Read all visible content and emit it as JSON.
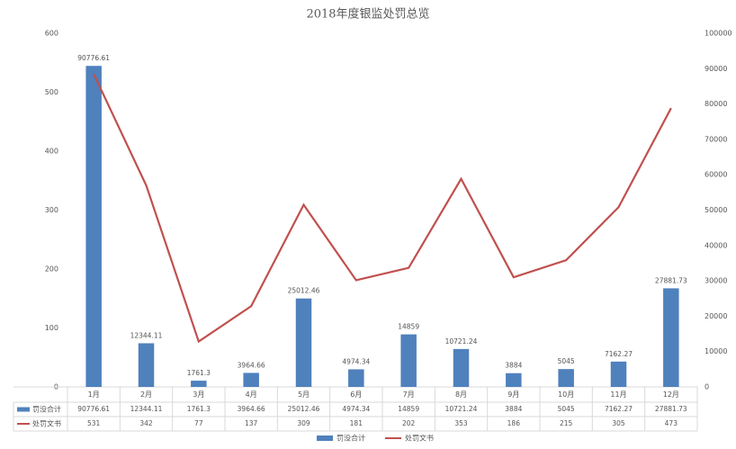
{
  "chart_data": {
    "type": "combo",
    "title": "2018年度银监处罚总览",
    "categories": [
      "1月",
      "2月",
      "3月",
      "4月",
      "5月",
      "6月",
      "7月",
      "8月",
      "9月",
      "10月",
      "11月",
      "12月"
    ],
    "series": [
      {
        "name": "罚没合计",
        "type": "bar",
        "color": "#4f81bd",
        "axis": "y2",
        "values": [
          90776.61,
          12344.11,
          1761.3,
          3964.66,
          25012.46,
          4974.34,
          14859,
          10721.24,
          3884,
          5045,
          7162.27,
          27881.73
        ]
      },
      {
        "name": "处罚文书",
        "type": "line",
        "color": "#c0504d",
        "values": [
          531,
          342,
          77,
          137,
          309,
          181,
          202,
          353,
          186,
          215,
          305,
          473
        ]
      }
    ],
    "ylim": [
      0,
      600
    ],
    "yticks": [
      0,
      100,
      200,
      300,
      400,
      500,
      600
    ],
    "y2lim": [
      0,
      100000
    ],
    "y2ticks": [
      0,
      10000,
      20000,
      30000,
      40000,
      50000,
      60000,
      70000,
      80000,
      90000,
      100000
    ],
    "grid": false,
    "legend": "bottom",
    "data_table": true
  }
}
